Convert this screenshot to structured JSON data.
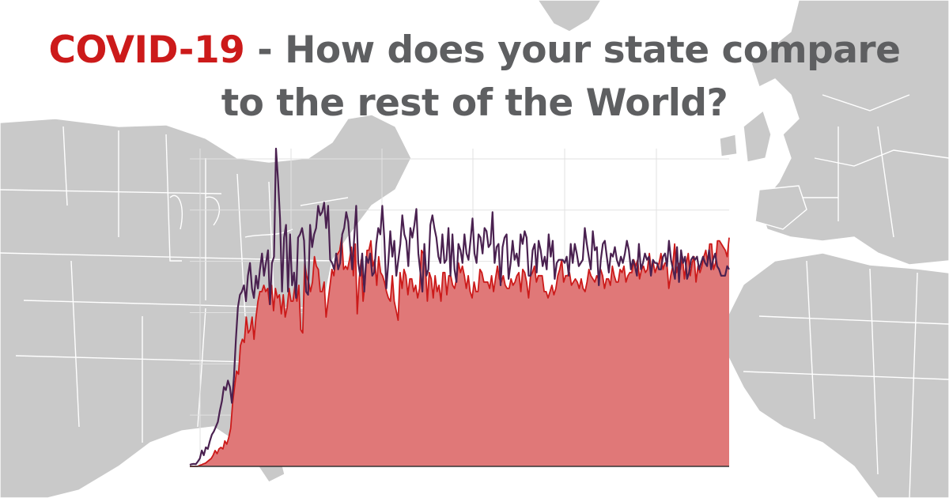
{
  "headline": {
    "accent": "COVID-19",
    "line1_rest": " - How does your state compare",
    "line2": "to the rest of the World?"
  },
  "colors": {
    "accent": "#cc1a1a",
    "title_gray": "#5e5f61",
    "map_land": "#c9c9c9",
    "area_fill": "#e07878",
    "area_line": "#cc1a1a",
    "line_series": "#4a2150",
    "grid": "#e2e2e2"
  },
  "chart_data": {
    "type": "area",
    "grid": true,
    "legend": "none",
    "ylim": [
      0,
      100
    ],
    "series": [
      {
        "style": "filled-area",
        "color": "#cc1a1a",
        "values": [
          0,
          0,
          0,
          0,
          0,
          0.3,
          0.5,
          0.8,
          1,
          1.5,
          2,
          2.5,
          3.5,
          5,
          4,
          5.5,
          6,
          5.5,
          8,
          7,
          9,
          12,
          20,
          25,
          30,
          29,
          38,
          40,
          39,
          47,
          42,
          43,
          47,
          40,
          47,
          52,
          55,
          55,
          57,
          55,
          56,
          51,
          57,
          49,
          56,
          53,
          54,
          48,
          54,
          47,
          50,
          56,
          52,
          52,
          57,
          52,
          57,
          43,
          42,
          64,
          60,
          58,
          55,
          58,
          66,
          63,
          62,
          55,
          55,
          58,
          47,
          52,
          57,
          62,
          60,
          66,
          67,
          68,
          72,
          62,
          63,
          62,
          65,
          69,
          60,
          70,
          48,
          59,
          65,
          52,
          58,
          68,
          68,
          71,
          63,
          65,
          57,
          66,
          61,
          60,
          58,
          55,
          53,
          52,
          60,
          52,
          49,
          46,
          61,
          56,
          62,
          60,
          54,
          59,
          59,
          55,
          57,
          53,
          56,
          68,
          67,
          63,
          52,
          61,
          59,
          53,
          60,
          55,
          57,
          52,
          61,
          61,
          54,
          60,
          60,
          57,
          56,
          59,
          64,
          61,
          63,
          60,
          56,
          60,
          55,
          53,
          58,
          55,
          55,
          62,
          61,
          58,
          58,
          58,
          56,
          60,
          55,
          59,
          63,
          59,
          58,
          60,
          57,
          56,
          56,
          59,
          57,
          58,
          60,
          61,
          55,
          62,
          61,
          58,
          53,
          60,
          61,
          63,
          58,
          60,
          60,
          60,
          55,
          55,
          53,
          55,
          57,
          54,
          56,
          60,
          62,
          65,
          58,
          60,
          60,
          61,
          57,
          58,
          59,
          58,
          56,
          59,
          56,
          55,
          58,
          62,
          60,
          59,
          58,
          60,
          59,
          62,
          60,
          56,
          59,
          59,
          57,
          63,
          60,
          58,
          58,
          62,
          61,
          63,
          58,
          60,
          61,
          61,
          65,
          63,
          65,
          59,
          62,
          63,
          61,
          62,
          67,
          62,
          64,
          61,
          63,
          64,
          67,
          62,
          64,
          64,
          56,
          60,
          63,
          70,
          61,
          64,
          62,
          66,
          59,
          64,
          67,
          60,
          64,
          66,
          58,
          63,
          61,
          63,
          66,
          68,
          64,
          70,
          70,
          62,
          64,
          71,
          71,
          70,
          69,
          68,
          66,
          72
        ]
      },
      {
        "style": "line",
        "color": "#4a2150",
        "values": [
          0.5,
          0.7,
          0.8,
          0.7,
          1.5,
          2.5,
          5,
          3.5,
          6,
          5.5,
          8,
          10,
          11,
          12.5,
          14,
          17.5,
          20.5,
          25,
          24,
          27,
          25,
          20,
          28,
          40,
          50,
          54,
          55,
          57,
          52,
          60,
          64,
          56,
          53,
          60,
          56,
          62,
          67,
          60,
          64,
          68,
          51,
          64,
          66,
          100,
          90,
          78,
          55,
          72,
          76,
          55,
          73,
          57,
          61,
          53,
          72,
          73,
          75,
          71,
          55,
          54,
          76,
          69,
          73,
          75,
          82,
          79,
          80,
          83,
          75,
          82,
          65,
          64,
          62,
          67,
          62,
          64,
          73,
          75,
          80,
          77,
          69,
          62,
          72,
          82,
          64,
          60,
          67,
          55,
          66,
          64,
          67,
          60,
          61,
          70,
          75,
          73,
          82,
          72,
          56,
          64,
          74,
          66,
          71,
          60,
          65,
          70,
          79,
          73,
          71,
          63,
          75,
          72,
          76,
          81,
          67,
          61,
          55,
          70,
          60,
          62,
          76,
          79,
          75,
          72,
          66,
          64,
          73,
          64,
          65,
          75,
          60,
          73,
          62,
          58,
          70,
          68,
          64,
          73,
          67,
          65,
          71,
          78,
          67,
          64,
          73,
          72,
          67,
          75,
          74,
          69,
          70,
          80,
          64,
          69,
          70,
          57,
          69,
          72,
          73,
          59,
          64,
          71,
          65,
          67,
          63,
          73,
          70,
          74,
          72,
          60,
          60,
          68,
          70,
          61,
          71,
          68,
          63,
          66,
          62,
          73,
          66,
          71,
          59,
          64,
          65,
          65,
          65,
          64,
          66,
          60,
          70,
          64,
          70,
          67,
          63,
          64,
          65,
          75,
          70,
          66,
          62,
          74,
          68,
          69,
          57,
          65,
          70,
          71,
          66,
          61,
          67,
          66,
          69,
          65,
          63,
          66,
          64,
          67,
          71,
          68,
          62,
          65,
          63,
          60,
          70,
          62,
          64,
          67,
          65,
          66,
          60,
          65,
          64,
          64,
          62,
          62,
          66,
          67,
          63,
          71,
          65,
          62,
          59,
          69,
          58,
          68,
          64,
          66,
          59,
          61,
          65,
          66,
          65,
          66,
          62,
          64,
          66,
          64,
          63,
          68,
          62,
          65,
          67,
          63,
          62,
          60,
          60,
          60,
          63,
          62
        ]
      }
    ]
  }
}
